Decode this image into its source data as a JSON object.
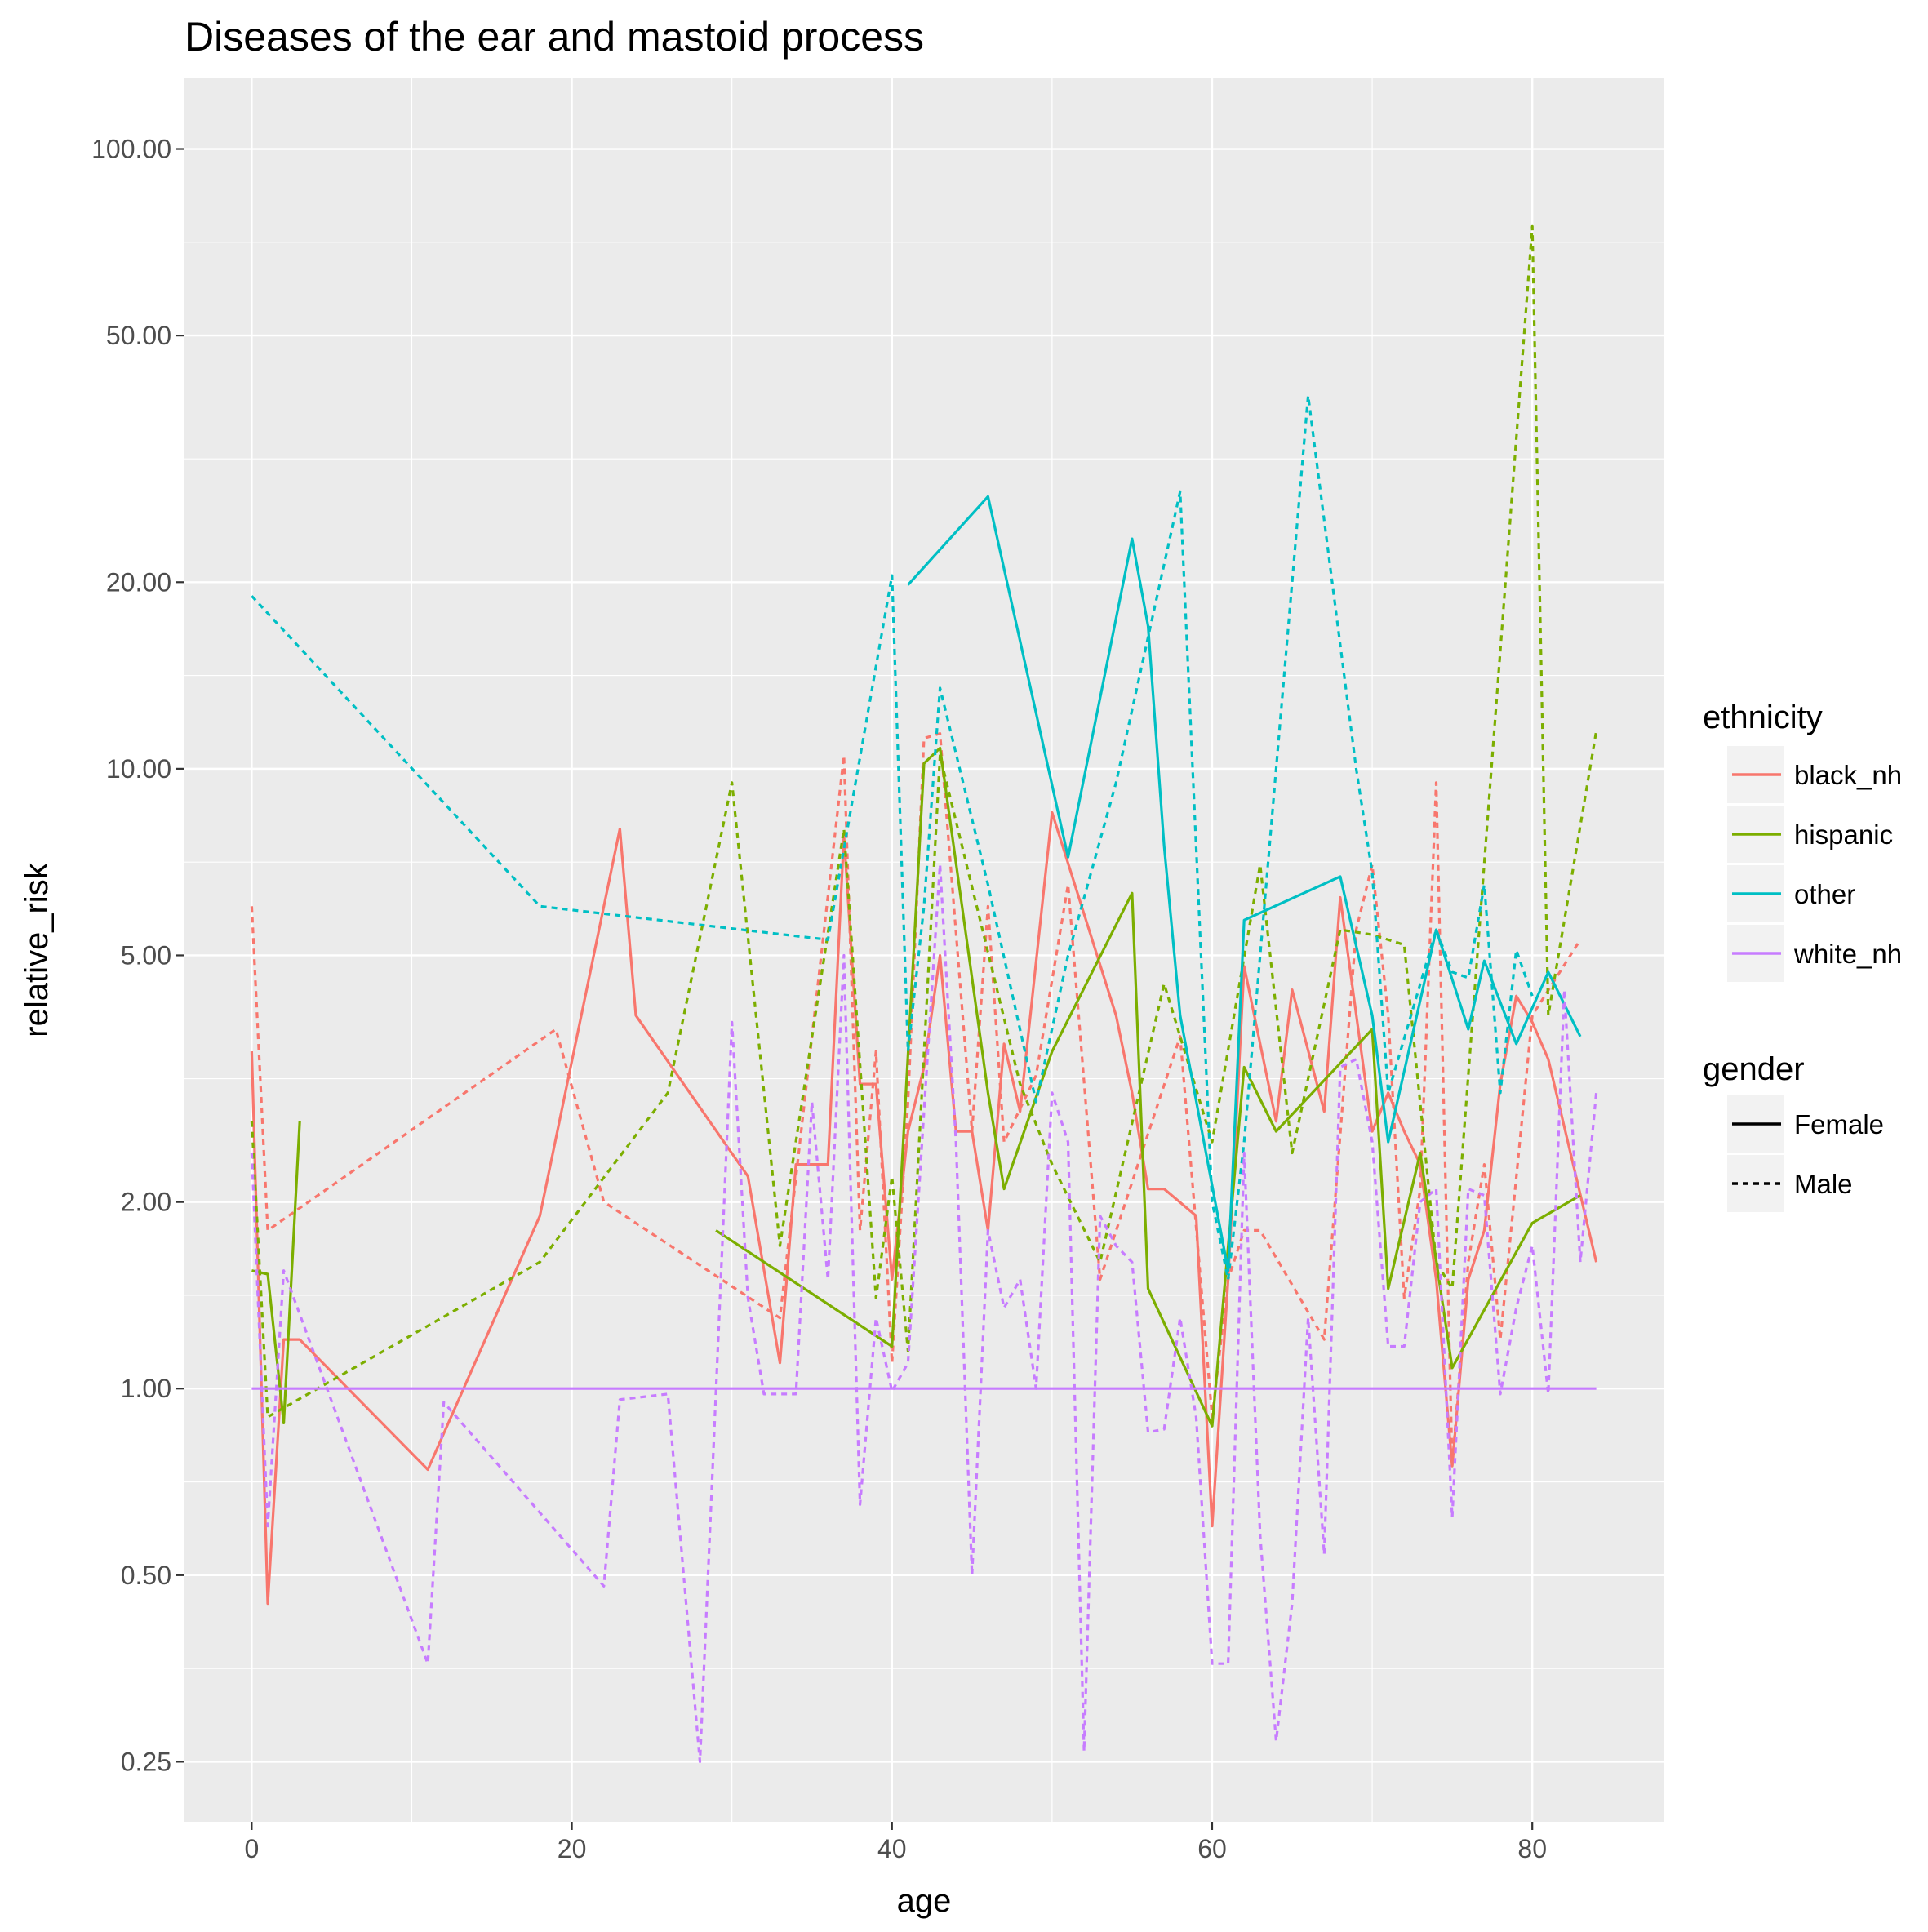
{
  "chart_data": {
    "type": "line",
    "title": "Diseases of the ear and mastoid process",
    "xlabel": "age",
    "ylabel": "relative_risk",
    "xlim": [
      -4.2,
      88.2
    ],
    "ylim": [
      0.2,
      130
    ],
    "y_scale": "log10",
    "x_ticks": [
      0,
      20,
      40,
      60,
      80
    ],
    "x_tick_labels": [
      "0",
      "20",
      "40",
      "60",
      "80"
    ],
    "y_ticks": [
      0.25,
      0.5,
      1,
      2,
      5,
      10,
      20,
      50,
      100
    ],
    "y_tick_labels": [
      "0.25",
      "0.50",
      "1.00",
      "2.00",
      "5.00",
      "10.00",
      "20.00",
      "50.00",
      "100.00"
    ],
    "grid": true,
    "legend_position": "right",
    "legends": [
      {
        "title": "ethnicity",
        "entries": [
          {
            "label": "black_nh",
            "color": "#F8766D"
          },
          {
            "label": "hispanic",
            "color": "#7CAE00"
          },
          {
            "label": "other",
            "color": "#00BFC4"
          },
          {
            "label": "white_nh",
            "color": "#C77CFF"
          }
        ]
      },
      {
        "title": "gender",
        "entries": [
          {
            "label": "Female",
            "linetype": "solid"
          },
          {
            "label": "Male",
            "linetype": "dashed"
          }
        ]
      }
    ],
    "series": [
      {
        "ethnicity": "black_nh",
        "gender": "Female",
        "color": "#F8766D",
        "dash": "solid",
        "x": [
          0,
          1,
          2,
          3,
          11,
          18,
          23,
          24,
          31,
          33,
          34,
          35,
          36,
          37,
          38,
          39,
          40,
          41,
          42,
          43,
          44,
          45,
          46,
          47,
          48,
          50,
          54,
          55,
          56,
          57,
          59,
          60,
          61,
          62,
          64,
          65,
          67,
          68,
          70,
          71,
          72,
          73,
          74,
          75,
          76,
          77,
          78,
          79,
          80,
          81,
          84
        ],
        "y": [
          3.5,
          0.45,
          1.2,
          1.2,
          0.74,
          1.9,
          8,
          4,
          2.2,
          1.1,
          2.3,
          2.3,
          2.3,
          7.8,
          3.1,
          3.1,
          1.5,
          2.6,
          3.3,
          5,
          2.6,
          2.6,
          1.8,
          3.6,
          2.8,
          8.5,
          4,
          3,
          2.1,
          2.1,
          1.9,
          0.6,
          1.5,
          4.8,
          2.7,
          4.4,
          2.8,
          6.2,
          2.6,
          3,
          2.6,
          2.3,
          1.5,
          0.75,
          1.5,
          1.8,
          3.1,
          4.3,
          3.9,
          3.4,
          1.6
        ]
      },
      {
        "ethnicity": "black_nh",
        "gender": "Male",
        "color": "#F8766D",
        "dash": "dashed",
        "x": [
          0,
          1,
          19,
          22,
          33,
          37,
          38,
          39,
          40,
          41,
          42,
          43,
          45,
          46,
          47,
          49,
          51,
          53,
          58,
          60,
          61,
          62,
          63,
          67,
          69,
          70,
          71,
          72,
          73,
          74,
          75,
          76,
          77,
          78,
          80,
          83
        ],
        "y": [
          6,
          1.8,
          3.8,
          2,
          1.3,
          10.5,
          1.8,
          3.5,
          1.1,
          2.9,
          11.2,
          11.4,
          2.6,
          6,
          2.5,
          3.2,
          6.5,
          1.5,
          3.7,
          0.9,
          1.5,
          1.8,
          1.8,
          1.2,
          5.5,
          7,
          4,
          1.4,
          2.1,
          9.5,
          0.75,
          1.6,
          2.3,
          1.2,
          4,
          5.3
        ]
      },
      {
        "ethnicity": "hispanic",
        "gender": "Female",
        "color": "#7CAE00",
        "dash": "solid",
        "x": [
          0,
          1,
          2,
          3
        ],
        "y": [
          1.55,
          1.53,
          0.88,
          2.7
        ]
      },
      {
        "ethnicity": "hispanic",
        "gender": "Female",
        "color": "#7CAE00",
        "dash": "solid",
        "x": [
          29,
          40,
          42,
          43,
          46,
          47,
          50,
          55,
          56,
          60,
          62,
          64,
          70,
          71,
          73,
          75,
          80,
          83
        ],
        "y": [
          1.8,
          1.17,
          10.2,
          10.8,
          3,
          2.1,
          3.5,
          6.3,
          1.45,
          0.87,
          3.3,
          2.6,
          3.8,
          1.45,
          2.4,
          1.08,
          1.85,
          2.05
        ]
      },
      {
        "ethnicity": "hispanic",
        "gender": "Male",
        "color": "#7CAE00",
        "dash": "dashed",
        "x": [
          0,
          1,
          18,
          26,
          30,
          33,
          37,
          39,
          40,
          41,
          43,
          48,
          50,
          53,
          57,
          60,
          63,
          65,
          68,
          70,
          72,
          74,
          75,
          80,
          81,
          84
        ],
        "y": [
          2.7,
          0.9,
          1.6,
          3,
          9.5,
          1.7,
          8,
          1.4,
          2.2,
          1.15,
          10.5,
          3.1,
          2.3,
          1.6,
          4.5,
          2.5,
          7,
          2.4,
          5.5,
          5.4,
          5.2,
          1.6,
          1.45,
          75,
          4,
          11.5
        ]
      },
      {
        "ethnicity": "other",
        "gender": "Female",
        "color": "#00BFC4",
        "dash": "solid",
        "x": [
          41,
          46,
          51,
          55,
          56,
          57,
          58,
          61,
          62,
          68,
          70,
          71,
          74,
          76,
          77,
          79,
          81,
          83
        ],
        "y": [
          19.8,
          27.5,
          7.2,
          23.5,
          17,
          7.5,
          4,
          1.55,
          5.7,
          6.7,
          4,
          2.5,
          5.5,
          3.8,
          4.9,
          3.6,
          4.7,
          3.7
        ]
      },
      {
        "ethnicity": "other",
        "gender": "Male",
        "color": "#00BFC4",
        "dash": "dashed",
        "x": [
          0,
          18,
          36,
          40,
          41,
          42,
          43,
          46,
          49,
          51,
          54,
          58,
          60,
          61,
          62,
          66,
          69,
          70,
          71,
          74,
          75,
          76,
          77,
          78,
          79,
          80
        ],
        "y": [
          19,
          6,
          5.3,
          20.5,
          3.5,
          6,
          13.5,
          6.5,
          2.9,
          5,
          9.5,
          28,
          2,
          1.5,
          2.5,
          40,
          10,
          6.8,
          3,
          5.5,
          4.7,
          4.6,
          6.5,
          3,
          5.1,
          4.3
        ]
      },
      {
        "ethnicity": "white_nh",
        "gender": "Female",
        "color": "#C77CFF",
        "dash": "solid",
        "x": [
          0,
          84
        ],
        "y": [
          1,
          1
        ]
      },
      {
        "ethnicity": "white_nh",
        "gender": "Male",
        "color": "#C77CFF",
        "dash": "dashed",
        "x": [
          0,
          1,
          2,
          11,
          12,
          22,
          23,
          26,
          28,
          30,
          31,
          32,
          33,
          34,
          35,
          36,
          37,
          38,
          39,
          40,
          41,
          42,
          43,
          44,
          45,
          46,
          47,
          48,
          49,
          50,
          51,
          52,
          53,
          54,
          55,
          56,
          57,
          58,
          59,
          60,
          61,
          62,
          63,
          64,
          65,
          66,
          67,
          68,
          69,
          70,
          71,
          72,
          73,
          74,
          75,
          76,
          77,
          78,
          79,
          80,
          81,
          82,
          83,
          84
        ],
        "y": [
          2.4,
          0.6,
          1.55,
          0.36,
          0.95,
          0.48,
          0.96,
          0.98,
          0.25,
          3.9,
          1.4,
          0.98,
          0.98,
          0.98,
          2.9,
          1.5,
          5,
          0.65,
          1.3,
          0.99,
          1.1,
          2.8,
          7,
          2.5,
          0.5,
          1.8,
          1.35,
          1.5,
          1,
          3,
          2.5,
          0.26,
          1.9,
          1.7,
          1.6,
          0.85,
          0.86,
          1.3,
          0.9,
          0.36,
          0.36,
          2.4,
          0.58,
          0.27,
          0.45,
          1.3,
          0.54,
          3.3,
          3.4,
          2.5,
          1.17,
          1.17,
          2,
          2.1,
          0.62,
          2.1,
          2.05,
          0.98,
          1.35,
          1.7,
          0.98,
          4.4,
          1.6,
          3
        ]
      }
    ]
  }
}
